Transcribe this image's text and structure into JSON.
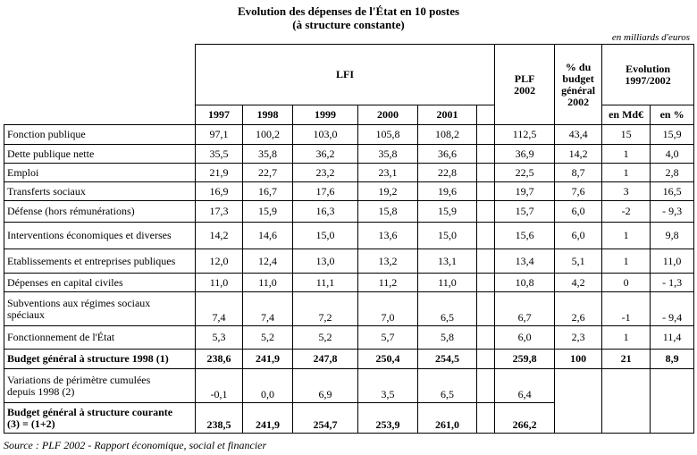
{
  "title": {
    "line1": "Evolution des dépenses de l'État en 10 postes",
    "line2": "(à structure constante)"
  },
  "unit_note": "en milliards d'euros",
  "source_note": "Source : PLF 2002 - Rapport économique, social et financier",
  "table": {
    "lfi_label": "LFI",
    "plf_label": "PLF\n2002",
    "pct_label": "% du\nbudget\ngénéral\n2002",
    "evolution_label": "Evolution\n1997/2002",
    "years": [
      "1997",
      "1998",
      "1999",
      "2000",
      "2001"
    ],
    "evo_units": [
      "en Md€",
      "en %"
    ],
    "rows": [
      {
        "label": "Fonction publique",
        "values": [
          "97,1",
          "100,2",
          "103,0",
          "105,8",
          "108,2",
          "112,5",
          "43,4",
          "15",
          "15,9"
        ]
      },
      {
        "label": "Dette publique nette",
        "values": [
          "35,5",
          "35,8",
          "36,2",
          "35,8",
          "36,6",
          "36,9",
          "14,2",
          "1",
          "4,0"
        ]
      },
      {
        "label": "Emploi",
        "values": [
          "21,9",
          "22,7",
          "23,2",
          "23,1",
          "22,8",
          "22,5",
          "8,7",
          "1",
          "2,8"
        ]
      },
      {
        "label": "Transferts sociaux",
        "values": [
          "16,9",
          "16,7",
          "17,6",
          "19,2",
          "19,6",
          "19,7",
          "7,6",
          "3",
          "16,5"
        ]
      },
      {
        "label": "Défense (hors rémunérations)",
        "values": [
          "17,3",
          "15,9",
          "16,3",
          "15,8",
          "15,9",
          "15,7",
          "6,0",
          "-2",
          "- 9,3"
        ]
      },
      {
        "label": "Interventions économiques et diverses",
        "values": [
          "14,2",
          "14,6",
          "15,0",
          "13,6",
          "15,0",
          "15,6",
          "6,0",
          "1",
          "9,8"
        ]
      },
      {
        "label": "Etablissements et entreprises publiques",
        "values": [
          "12,0",
          "12,4",
          "13,0",
          "13,2",
          "13,1",
          "13,4",
          "5,1",
          "1",
          "11,0"
        ]
      },
      {
        "label": "Dépenses en capital civiles",
        "values": [
          "11,0",
          "11,0",
          "11,1",
          "11,2",
          "11,0",
          "10,8",
          "4,2",
          "0",
          "- 1,3"
        ]
      },
      {
        "label": "Subventions aux régimes sociaux\nspéciaux",
        "values": [
          "7,4",
          "7,4",
          "7,2",
          "7,0",
          "6,5",
          "6,7",
          "2,6",
          "-1",
          "- 9,4"
        ]
      },
      {
        "label": "Fonctionnement de l'État",
        "values": [
          "5,3",
          "5,2",
          "5,2",
          "5,7",
          "5,8",
          "6,0",
          "2,3",
          "1",
          "11,4"
        ]
      },
      {
        "label": "Budget général à structure 1998 (1)",
        "values": [
          "238,6",
          "241,9",
          "247,8",
          "250,4",
          "254,5",
          "259,8",
          "100",
          "21",
          "8,9"
        ]
      },
      {
        "label": "Variations de périmètre cumulées\ndepuis 1998 (2)",
        "values": [
          "-0,1",
          "0,0",
          "6,9",
          "3,5",
          "6,5",
          "6,4",
          "",
          "",
          ""
        ]
      },
      {
        "label": "Budget général à structure courante\n(3) = (1+2)",
        "values": [
          "238,5",
          "241,9",
          "254,7",
          "253,9",
          "261,0",
          "266,2",
          "",
          "",
          ""
        ]
      }
    ]
  }
}
